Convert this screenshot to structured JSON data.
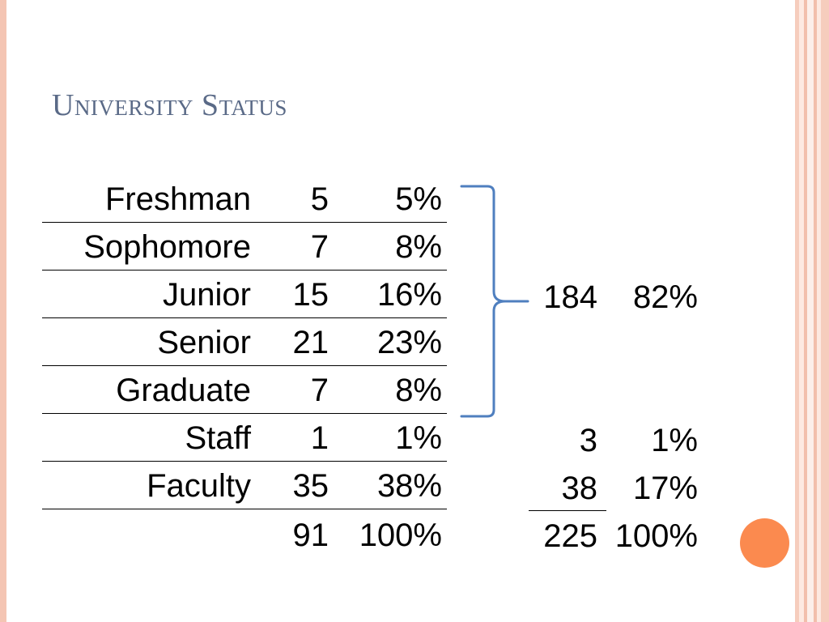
{
  "title": "University Status",
  "rows": [
    {
      "label": "Freshman",
      "count": "5",
      "pct": "5%"
    },
    {
      "label": "Sophomore",
      "count": "7",
      "pct": "8%"
    },
    {
      "label": "Junior",
      "count": "15",
      "pct": "16%"
    },
    {
      "label": "Senior",
      "count": "21",
      "pct": "23%"
    },
    {
      "label": "Graduate",
      "count": "7",
      "pct": "8%"
    },
    {
      "label": "Staff",
      "count": "1",
      "pct": "1%"
    },
    {
      "label": "Faculty",
      "count": "35",
      "pct": "38%"
    },
    {
      "label": "",
      "count": "91",
      "pct": "100%"
    }
  ],
  "summary": {
    "students": {
      "count": "184",
      "pct": "82%"
    },
    "staff": {
      "count": "3",
      "pct": "1%"
    },
    "faculty": {
      "count": "38",
      "pct": "17%"
    },
    "total": {
      "count": "225",
      "pct": "100%"
    }
  },
  "colors": {
    "title": "#5a6a87",
    "brace": "#4f7fbf",
    "accent_dot": "#fb8a4f",
    "border": "#f4c5b3"
  }
}
